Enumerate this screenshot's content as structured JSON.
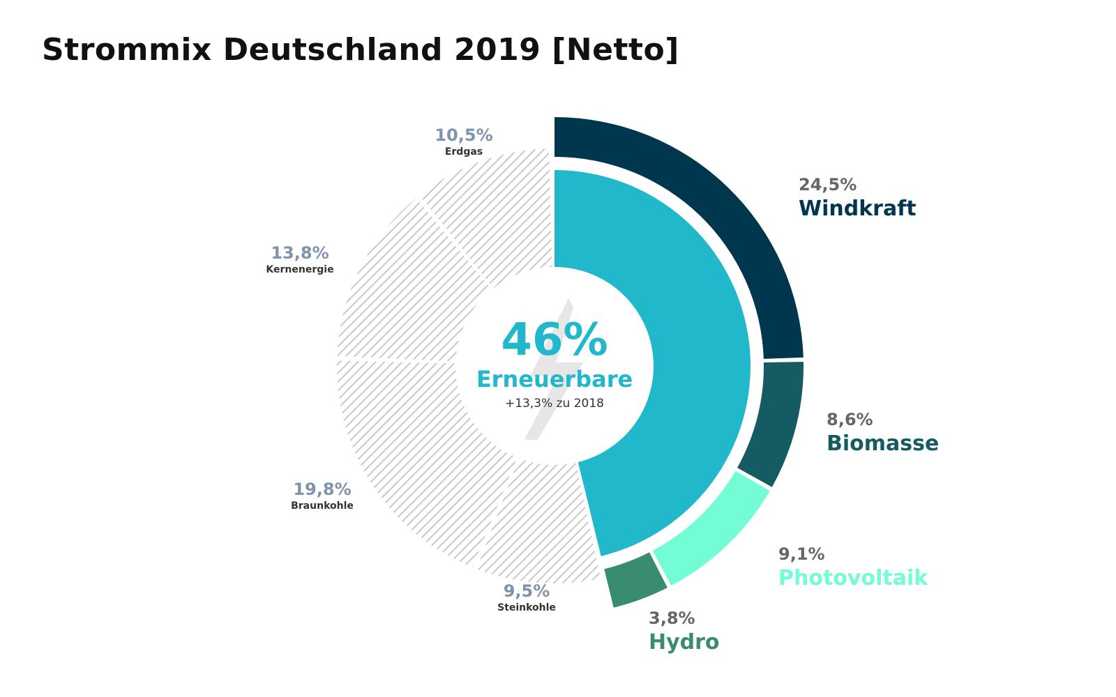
{
  "title": "Strommix Deutschland 2019 [Netto]",
  "center": {
    "value": "46%",
    "label": "Erneuerbare",
    "sub": "+13,3% zu 2018",
    "icon": "lightning-bolt-icon"
  },
  "colors": {
    "renewable_total": "#22b8cc",
    "windkraft": "#00374f",
    "biomasse": "#155c62",
    "photovoltaik": "#74fcd6",
    "hydro": "#398c6f",
    "hatch": "#c8c8c8",
    "gray_pct": "#7f93ad",
    "right_pct": "#666666"
  },
  "chart_data": {
    "type": "pie",
    "title": "Strommix Deutschland 2019 [Netto]",
    "unit": "%",
    "renewable_total": {
      "name": "Erneuerbare",
      "value": 46.0,
      "change_vs_2018": "+13,3%"
    },
    "renewables": [
      {
        "name": "Windkraft",
        "value": 24.5,
        "label": "24,5%"
      },
      {
        "name": "Biomasse",
        "value": 8.6,
        "label": "8,6%"
      },
      {
        "name": "Photovoltaik",
        "value": 9.1,
        "label": "9,1%"
      },
      {
        "name": "Hydro",
        "value": 3.8,
        "label": "3,8%"
      }
    ],
    "conventional": [
      {
        "name": "Steinkohle",
        "value": 9.5,
        "label": "9,5%"
      },
      {
        "name": "Braunkohle",
        "value": 19.8,
        "label": "19,8%"
      },
      {
        "name": "Kernenergie",
        "value": 13.8,
        "label": "13,8%"
      },
      {
        "name": "Erdgas",
        "value": 10.5,
        "label": "10,5%"
      }
    ],
    "legend": "inline labels"
  }
}
